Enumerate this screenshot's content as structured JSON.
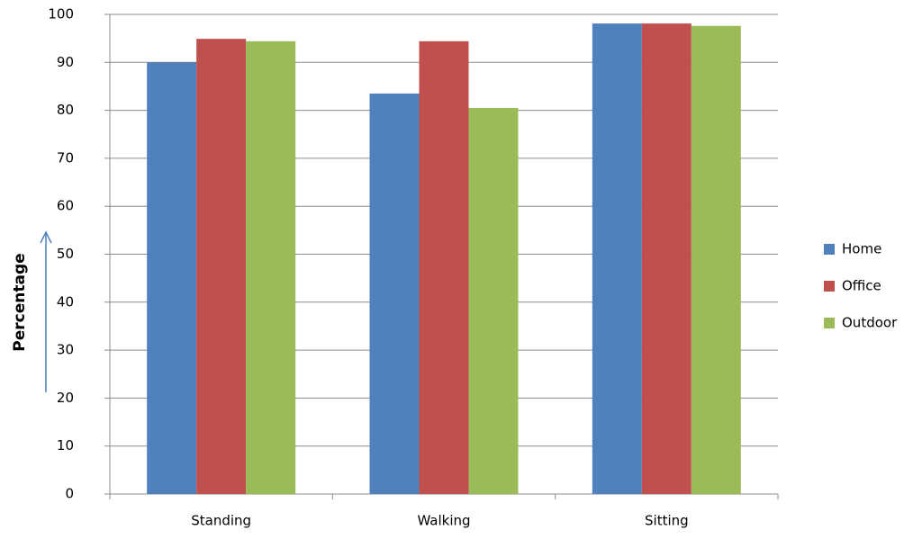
{
  "chart_data": {
    "type": "bar",
    "y_label": "Percentage",
    "categories": [
      "Standing",
      "Walking",
      "Sitting"
    ],
    "series": [
      {
        "name": "Home",
        "color": "#4f81bd",
        "values": [
          90,
          83.5,
          98.1
        ]
      },
      {
        "name": "Office",
        "color": "#c0504d",
        "values": [
          94.9,
          94.4,
          98.1
        ]
      },
      {
        "name": "Outdoor",
        "color": "#9bbb59",
        "values": [
          94.4,
          80.5,
          97.6
        ]
      }
    ],
    "ylim": [
      0,
      100
    ],
    "yticks": [
      0,
      10,
      20,
      30,
      40,
      50,
      60,
      70,
      80,
      90,
      100
    ],
    "grid": true,
    "legend": "right"
  }
}
